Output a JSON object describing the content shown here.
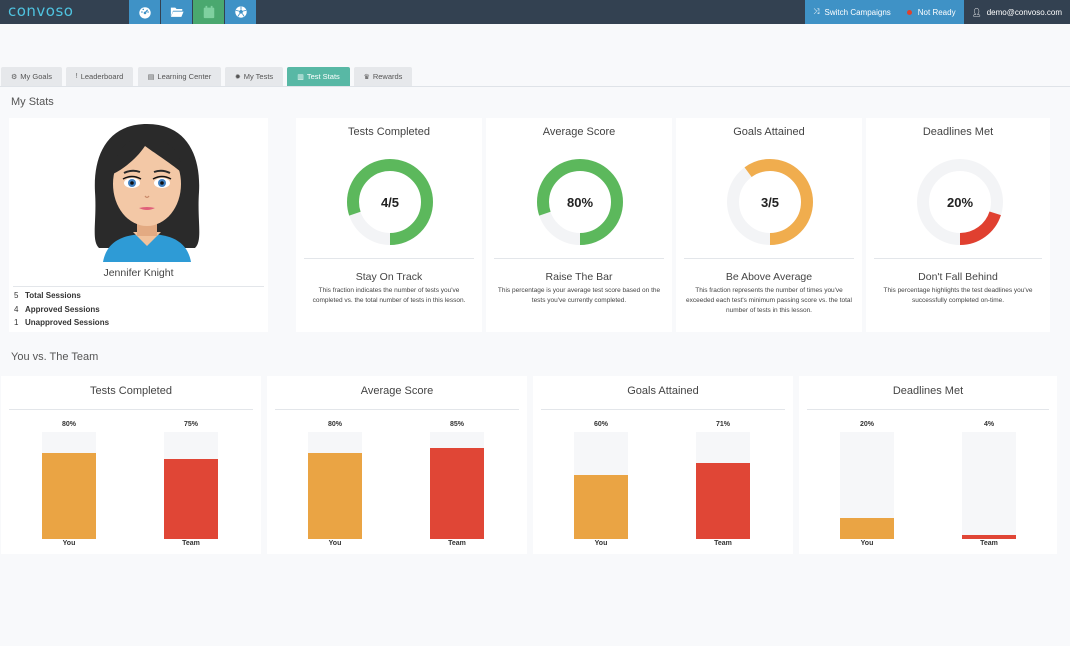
{
  "brand": {
    "logo": "convoso"
  },
  "topbar": {
    "nav_icons": [
      "dashboard-icon",
      "folder-icon",
      "calendar-icon",
      "soccer-ball-icon"
    ],
    "switch_campaigns": "Switch Campaigns",
    "status": "Not Ready",
    "user": "demo@convoso.com"
  },
  "tabs": [
    {
      "label": "My Goals",
      "icon": "gears-icon"
    },
    {
      "label": "Leaderboard",
      "icon": "exclamation-icon"
    },
    {
      "label": "Learning Center",
      "icon": "book-icon"
    },
    {
      "label": "My Tests",
      "icon": "gear-icon"
    },
    {
      "label": "Test Stats",
      "icon": "bar-chart-icon",
      "active": true
    },
    {
      "label": "Rewards",
      "icon": "trophy-icon"
    }
  ],
  "my_stats": {
    "title": "My Stats",
    "profile": {
      "name": "Jennifer Knight",
      "sessions": [
        {
          "count": "5",
          "label": "Total Sessions"
        },
        {
          "count": "4",
          "label": "Approved Sessions"
        },
        {
          "count": "1",
          "label": "Unapproved Sessions"
        }
      ]
    },
    "cards": [
      {
        "title": "Tests Completed",
        "value": "4/5",
        "fraction": 0.8,
        "color": "#5cb85c",
        "subtitle": "Stay On Track",
        "description": "This fraction indicates the number of tests you've completed vs. the total number of tests in this lesson."
      },
      {
        "title": "Average Score",
        "value": "80%",
        "fraction": 0.8,
        "color": "#5cb85c",
        "subtitle": "Raise The Bar",
        "description": "This percentage is your average test score based on the tests you've currently completed."
      },
      {
        "title": "Goals Attained",
        "value": "3/5",
        "fraction": 0.6,
        "color": "#f0ad4e",
        "subtitle": "Be Above Average",
        "description": "This fraction represents the number of times you've exceeded each test's minimum passing score vs. the total number of tests in this lesson."
      },
      {
        "title": "Deadlines Met",
        "value": "20%",
        "fraction": 0.2,
        "color": "#e04030",
        "subtitle": "Don't Fall Behind",
        "description": "This percentage highlights the test deadlines you've successfully completed on-time."
      }
    ]
  },
  "team": {
    "title": "You vs. The Team",
    "colors": {
      "you": "#eaa444",
      "team": "#e04636"
    }
  },
  "chart_data": [
    {
      "type": "bar",
      "title": "Tests Completed",
      "categories": [
        "You",
        "Team"
      ],
      "values": [
        80,
        75
      ],
      "value_labels": [
        "80%",
        "75%"
      ],
      "ylim": [
        0,
        100
      ]
    },
    {
      "type": "bar",
      "title": "Average Score",
      "categories": [
        "You",
        "Team"
      ],
      "values": [
        80,
        85
      ],
      "value_labels": [
        "80%",
        "85%"
      ],
      "ylim": [
        0,
        100
      ]
    },
    {
      "type": "bar",
      "title": "Goals Attained",
      "categories": [
        "You",
        "Team"
      ],
      "values": [
        60,
        71
      ],
      "value_labels": [
        "60%",
        "71%"
      ],
      "ylim": [
        0,
        100
      ]
    },
    {
      "type": "bar",
      "title": "Deadlines Met",
      "categories": [
        "You",
        "Team"
      ],
      "values": [
        20,
        4
      ],
      "value_labels": [
        "20%",
        "4%"
      ],
      "ylim": [
        0,
        100
      ]
    }
  ]
}
